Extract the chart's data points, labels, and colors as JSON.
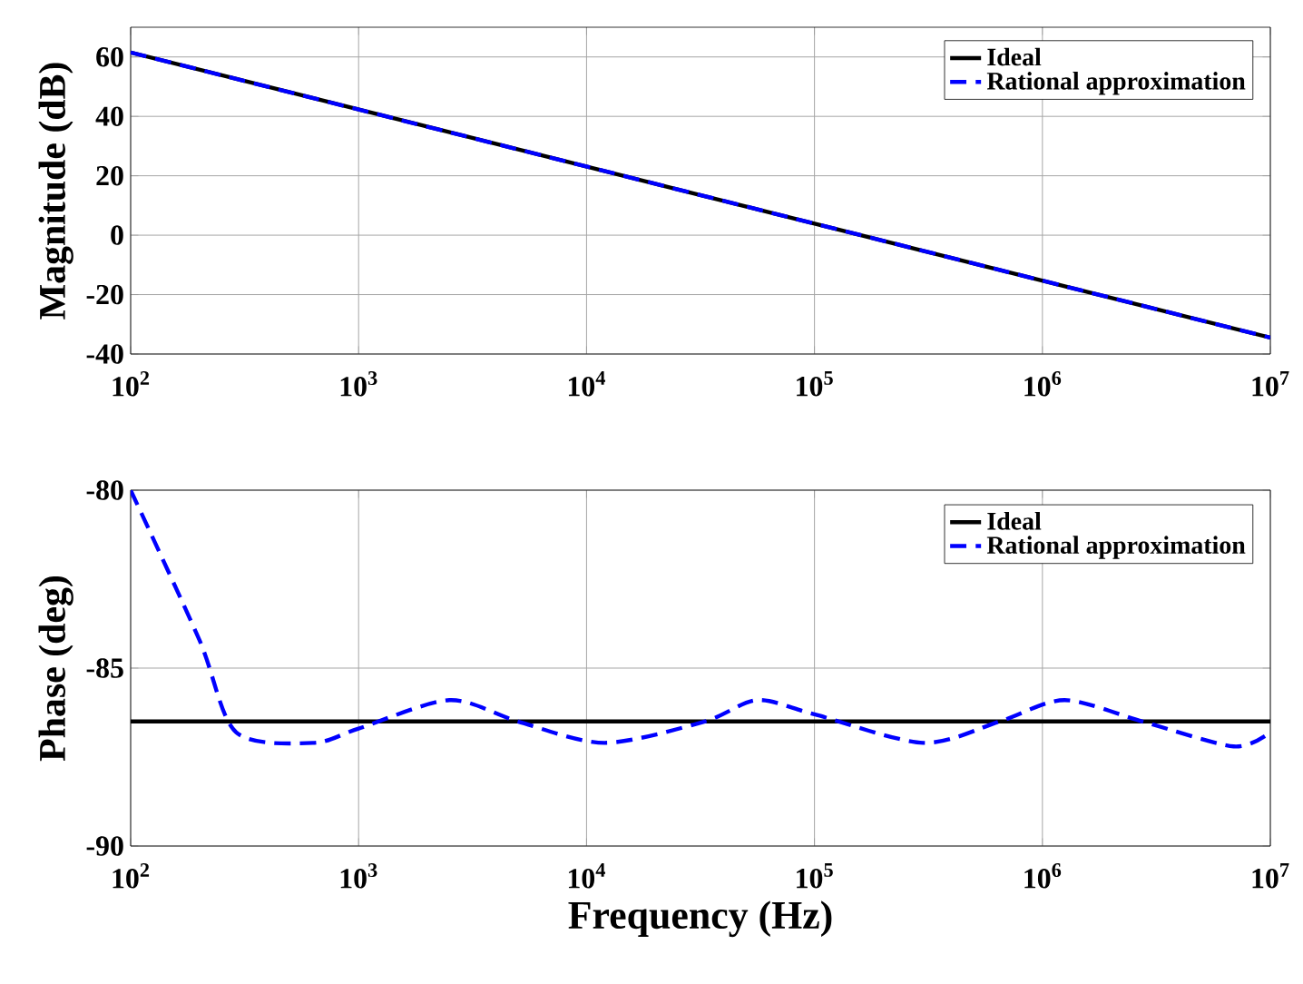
{
  "chart_data": [
    {
      "type": "line",
      "ylabel": "Magnitude (dB)",
      "log": "x",
      "grid": true,
      "legend": "top right",
      "marker": "none",
      "xlim": [
        100,
        10000000
      ],
      "ylim": [
        -40,
        70
      ],
      "xticks": [
        {
          "value": 100,
          "label": "10$^{2}$"
        },
        {
          "value": 1000,
          "label": "10$^{3}$"
        },
        {
          "value": 10000,
          "label": "10$^{4}$"
        },
        {
          "value": 100000,
          "label": "10$^{5}$"
        },
        {
          "value": 1000000,
          "label": "10$^{6}$"
        },
        {
          "value": 10000000,
          "label": "10$^{7}$"
        }
      ],
      "yticks": [
        -40,
        -20,
        0,
        20,
        40,
        60
      ],
      "series": [
        {
          "name": "Ideal",
          "color": "#000000",
          "line_style": "solid",
          "x": [
            100,
            10000000
          ],
          "values": [
            61.5,
            -34.5
          ]
        },
        {
          "name": "Rational approximation",
          "color": "#0000ff",
          "line_style": "dashed",
          "x": [
            100,
            10000000
          ],
          "values": [
            61.5,
            -34.5
          ]
        }
      ]
    },
    {
      "type": "line",
      "ylabel": "Phase (deg)",
      "xlabel": "Frequency (Hz)",
      "log": "x",
      "grid": true,
      "legend": "top right",
      "marker": "none",
      "xlim": [
        100,
        10000000
      ],
      "ylim": [
        -90,
        -80
      ],
      "xticks": [
        {
          "value": 100,
          "label": "10$^{2}$"
        },
        {
          "value": 1000,
          "label": "10$^{3}$"
        },
        {
          "value": 10000,
          "label": "10$^{4}$"
        },
        {
          "value": 100000,
          "label": "10$^{5}$"
        },
        {
          "value": 1000000,
          "label": "10$^{6}$"
        },
        {
          "value": 10000000,
          "label": "10$^{7}$"
        }
      ],
      "yticks": [
        -90,
        -85,
        -80
      ],
      "series": [
        {
          "name": "Ideal",
          "color": "#000000",
          "line_style": "solid",
          "x": [
            100,
            10000000
          ],
          "values": [
            -86.5,
            -86.5
          ]
        },
        {
          "name": "Rational approximation",
          "color": "#0000ff",
          "line_style": "dashed",
          "x": [
            100,
            200,
            290,
            630,
            1000,
            2500,
            5000,
            12000,
            33000,
            56000,
            100000,
            300000,
            650000,
            1250000,
            2750000,
            6900000,
            10000000
          ],
          "values": [
            -80,
            -84.2,
            -86.8,
            -87.1,
            -86.7,
            -85.9,
            -86.5,
            -87.1,
            -86.5,
            -85.9,
            -86.3,
            -87.1,
            -86.5,
            -85.9,
            -86.5,
            -87.2,
            -86.8
          ]
        }
      ]
    }
  ]
}
